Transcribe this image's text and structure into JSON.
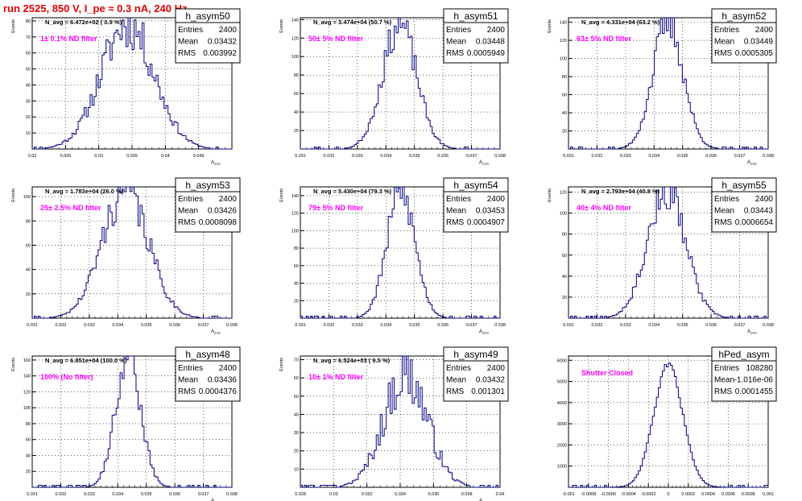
{
  "page": {
    "title": "run 2525,   850 V, I_pe ≈ 0.3 nA, 240 Hz"
  },
  "style": {
    "hist_color": "#000080",
    "label_color": "#ff00ff",
    "title_color": "#e00000",
    "grid_color": "#000000"
  },
  "chart_data": [
    {
      "type": "histogram",
      "name": "h_asym50",
      "navg": "N_avg = 6.472e+02 ( 0.9 %)",
      "filter": "1± 0.1% ND filter",
      "stats": [
        [
          "Entries",
          "2400"
        ],
        [
          "Mean",
          "0.03432"
        ],
        [
          "RMS",
          "0.003992"
        ]
      ],
      "xlabel": "A_uUD",
      "ylabel": "Events",
      "xlim": [
        0.02,
        0.05
      ],
      "ylim": [
        0,
        82
      ],
      "xticks": [
        0.02,
        0.025,
        0.03,
        0.035,
        0.04,
        0.045
      ],
      "xticklabels": [
        "0.02",
        "0.025",
        "0.03",
        "0.035",
        "0.04",
        "0.045"
      ],
      "yticks": [
        10,
        20,
        30,
        40,
        50,
        60,
        70,
        80
      ],
      "gen": {
        "mean": 0.03432,
        "rms": 0.003992,
        "peak": 78,
        "bins": 100,
        "seed": 11,
        "noise": 0.2,
        "rise": 0.0
      }
    },
    {
      "type": "histogram",
      "name": "h_asym51",
      "navg": "N_avg = 3.474e+04 (50.7 %)",
      "filter": "50± 5% ND filter",
      "stats": [
        [
          "Entries",
          "2400"
        ],
        [
          "Mean",
          "0.03448"
        ],
        [
          "RMS",
          "0.0005949"
        ]
      ],
      "xlabel": "A_uUD",
      "ylabel": "Events",
      "xlim": [
        0.031,
        0.038
      ],
      "ylim": [
        0,
        142
      ],
      "xticks": [
        0.031,
        0.032,
        0.033,
        0.034,
        0.035,
        0.036,
        0.037,
        0.038
      ],
      "xticklabels": [
        "0.031",
        "0.032",
        "0.033",
        "0.034",
        "0.035",
        "0.036",
        "0.037",
        "0.038"
      ],
      "yticks": [
        20,
        40,
        60,
        80,
        100,
        120,
        140
      ],
      "gen": {
        "mean": 0.03448,
        "rms": 0.0005949,
        "peak": 135,
        "bins": 100,
        "seed": 23,
        "noise": 0.15,
        "rise": 0.0
      }
    },
    {
      "type": "histogram",
      "name": "h_asym52",
      "navg": "N_avg = 4.331e+04 (63.2 %)",
      "filter": "63± 5% ND filter",
      "stats": [
        [
          "Entries",
          "2400"
        ],
        [
          "Mean",
          "0.03449"
        ],
        [
          "RMS",
          "0.0005305"
        ]
      ],
      "xlabel": "A_uUD",
      "ylabel": "Events",
      "xlim": [
        0.031,
        0.038
      ],
      "ylim": [
        0,
        145
      ],
      "xticks": [
        0.031,
        0.032,
        0.033,
        0.034,
        0.035,
        0.036,
        0.037,
        0.038
      ],
      "xticklabels": [
        "0.031",
        "0.032",
        "0.033",
        "0.034",
        "0.035",
        "0.036",
        "0.037",
        "0.038"
      ],
      "yticks": [
        20,
        40,
        60,
        80,
        100,
        120,
        140
      ],
      "gen": {
        "mean": 0.03449,
        "rms": 0.0005305,
        "peak": 140,
        "bins": 100,
        "seed": 37,
        "noise": 0.15,
        "rise": 0.0
      }
    },
    {
      "type": "histogram",
      "name": "h_asym53",
      "navg": "N_avg = 1.783e+04 (26.0 %)",
      "filter": "25± 2.5% ND filter",
      "stats": [
        [
          "Entries",
          "2400"
        ],
        [
          "Mean",
          "0.03426"
        ],
        [
          "RMS",
          "0.0008098"
        ]
      ],
      "xlabel": "A_uUD",
      "ylabel": "Events",
      "xlim": [
        0.031,
        0.038
      ],
      "ylim": [
        0,
        108
      ],
      "xticks": [
        0.031,
        0.032,
        0.033,
        0.034,
        0.035,
        0.036,
        0.037,
        0.038
      ],
      "xticklabels": [
        "0.031",
        "0.032",
        "0.033",
        "0.034",
        "0.035",
        "0.036",
        "0.037",
        "0.038"
      ],
      "yticks": [
        20,
        40,
        60,
        80,
        100
      ],
      "gen": {
        "mean": 0.03426,
        "rms": 0.0008098,
        "peak": 105,
        "bins": 100,
        "seed": 41,
        "noise": 0.18,
        "rise": 0.0
      }
    },
    {
      "type": "histogram",
      "name": "h_asym54",
      "navg": "N_avg = 5.430e+04 (79.3 %)",
      "filter": "79± 5% ND filter",
      "stats": [
        [
          "Entries",
          "2400"
        ],
        [
          "Mean",
          "0.03453"
        ],
        [
          "RMS",
          "0.0004907"
        ]
      ],
      "xlabel": "A_uUD",
      "ylabel": "Events",
      "xlim": [
        0.031,
        0.038
      ],
      "ylim": [
        0,
        150
      ],
      "xticks": [
        0.031,
        0.032,
        0.033,
        0.034,
        0.035,
        0.036,
        0.037,
        0.038
      ],
      "xticklabels": [
        "0.031",
        "0.032",
        "0.033",
        "0.034",
        "0.035",
        "0.036",
        "0.037",
        "0.038"
      ],
      "yticks": [
        20,
        40,
        60,
        80,
        100,
        120,
        140
      ],
      "gen": {
        "mean": 0.03453,
        "rms": 0.0004907,
        "peak": 145,
        "bins": 100,
        "seed": 53,
        "noise": 0.15,
        "rise": 0.0
      }
    },
    {
      "type": "histogram",
      "name": "h_asym55",
      "navg": "N_avg = 2.793e+04 (40.8 %)",
      "filter": "40± 4% ND filter",
      "stats": [
        [
          "Entries",
          "2400"
        ],
        [
          "Mean",
          "0.03443"
        ],
        [
          "RMS",
          "0.0006654"
        ]
      ],
      "xlabel": "A_uUD",
      "ylabel": "Events",
      "xlim": [
        0.031,
        0.038
      ],
      "ylim": [
        0,
        125
      ],
      "xticks": [
        0.031,
        0.032,
        0.033,
        0.034,
        0.035,
        0.036,
        0.037,
        0.038
      ],
      "xticklabels": [
        "0.031",
        "0.032",
        "0.033",
        "0.034",
        "0.035",
        "0.036",
        "0.037",
        "0.038"
      ],
      "yticks": [
        20,
        40,
        60,
        80,
        100,
        120
      ],
      "gen": {
        "mean": 0.03443,
        "rms": 0.0006654,
        "peak": 122,
        "bins": 100,
        "seed": 67,
        "noise": 0.16,
        "rise": 0.0
      }
    },
    {
      "type": "histogram",
      "name": "h_asym48",
      "navg": "N_avg = 6.851e+04 (100.0 %)",
      "filter": "100% (No filter)",
      "stats": [
        [
          "Entries",
          "2400"
        ],
        [
          "Mean",
          "0.03436"
        ],
        [
          "RMS",
          "0.0004376"
        ]
      ],
      "xlabel": "A_uUD",
      "ylabel": "Events",
      "xlim": [
        0.031,
        0.038
      ],
      "ylim": [
        0,
        165
      ],
      "xticks": [
        0.031,
        0.032,
        0.033,
        0.034,
        0.035,
        0.036,
        0.037,
        0.038
      ],
      "xticklabels": [
        "0.031",
        "0.032",
        "0.033",
        "0.034",
        "0.035",
        "0.036",
        "0.037",
        "0.038"
      ],
      "yticks": [
        20,
        40,
        60,
        80,
        100,
        120,
        140,
        160
      ],
      "gen": {
        "mean": 0.03436,
        "rms": 0.0004376,
        "peak": 165,
        "bins": 100,
        "seed": 79,
        "noise": 0.15,
        "rise": 0.0
      }
    },
    {
      "type": "histogram",
      "name": "h_asym49",
      "navg": "N_avg = 6.524e+03 ( 9.5 %)",
      "filter": "10± 1% ND filter",
      "stats": [
        [
          "Entries",
          "2400"
        ],
        [
          "Mean",
          "0.03432"
        ],
        [
          "RMS",
          "0.001301"
        ]
      ],
      "xlabel": "A_uUD",
      "ylabel": "Events",
      "xlim": [
        0.028,
        0.04
      ],
      "ylim": [
        0,
        72
      ],
      "xticks": [
        0.028,
        0.03,
        0.032,
        0.034,
        0.036,
        0.038,
        0.04
      ],
      "xticklabels": [
        "0.028",
        "0.03",
        "0.032",
        "0.034",
        "0.036",
        "0.038",
        "0.04"
      ],
      "yticks": [
        10,
        20,
        30,
        40,
        50,
        60,
        70
      ],
      "gen": {
        "mean": 0.03432,
        "rms": 0.001301,
        "peak": 62,
        "bins": 100,
        "seed": 97,
        "noise": 0.25,
        "rise": 0.0
      }
    },
    {
      "type": "histogram",
      "name": "hPed_asym",
      "navg": "",
      "filter": "Shutter Closed",
      "stats": [
        [
          "Entries",
          "108280"
        ],
        [
          "Mean",
          "-1.016e-06"
        ],
        [
          "RMS",
          "0.0001455"
        ]
      ],
      "xlabel": "",
      "ylabel": "",
      "xlim": [
        -0.001,
        0.001
      ],
      "ylim": [
        0,
        6200
      ],
      "xticks": [
        -0.001,
        -0.0008,
        -0.0006,
        -0.0004,
        -0.0002,
        0,
        0.0002,
        0.0004,
        0.0006,
        0.0008,
        0.001
      ],
      "xticklabels": [
        "-0.001",
        "-0.0008",
        "-0.0006",
        "-0.0004",
        "-0.0002",
        "0",
        "0.0002",
        "0.0004",
        "0.0006",
        "0.0008",
        "0.001"
      ],
      "yticks": [
        1000,
        2000,
        3000,
        4000,
        5000,
        6000
      ],
      "gen": {
        "mean": -1.016e-06,
        "rms": 0.0001455,
        "peak": 5750,
        "bins": 100,
        "seed": 101,
        "noise": 0.03,
        "rise": 0.0
      }
    }
  ]
}
